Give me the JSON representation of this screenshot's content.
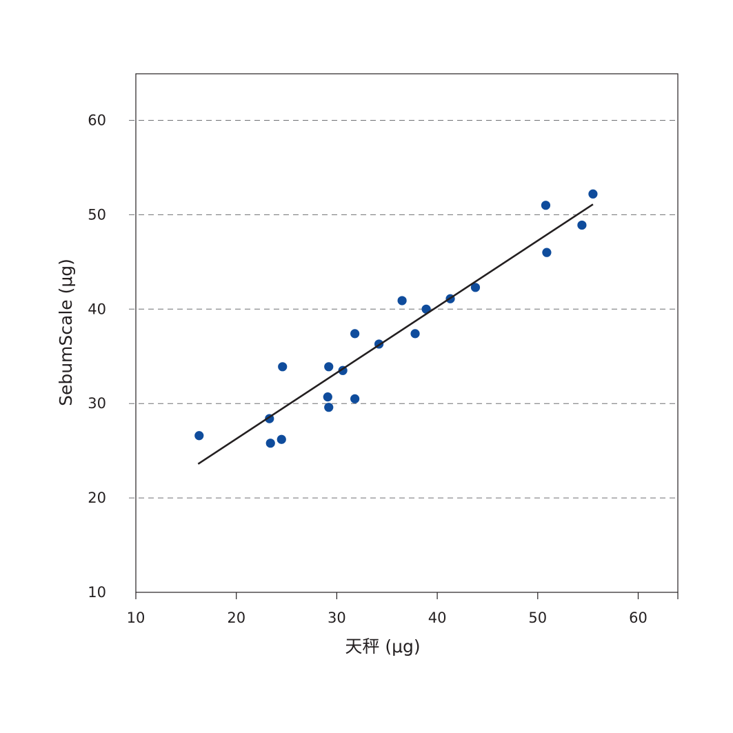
{
  "chart_data": {
    "type": "scatter",
    "title": "",
    "xlabel": "天秤 (μg)",
    "ylabel": "SebumScale (μg)",
    "xlim": [
      10,
      64
    ],
    "ylim": [
      10,
      65
    ],
    "xticks": [
      10,
      20,
      30,
      40,
      50,
      60
    ],
    "yticks": [
      10,
      20,
      30,
      40,
      50,
      60
    ],
    "grid": "horizontal dashed",
    "legend": "none",
    "point_color": "#0f4c9c",
    "line_color": "#231f20",
    "series": [
      {
        "points": [
          {
            "x": 16.3,
            "y": 26.6
          },
          {
            "x": 23.3,
            "y": 28.4
          },
          {
            "x": 23.4,
            "y": 25.8
          },
          {
            "x": 24.5,
            "y": 26.2
          },
          {
            "x": 24.6,
            "y": 33.9
          },
          {
            "x": 29.1,
            "y": 30.7
          },
          {
            "x": 29.2,
            "y": 29.6
          },
          {
            "x": 29.2,
            "y": 33.9
          },
          {
            "x": 30.6,
            "y": 33.5
          },
          {
            "x": 31.8,
            "y": 30.5
          },
          {
            "x": 31.8,
            "y": 37.4
          },
          {
            "x": 34.2,
            "y": 36.3
          },
          {
            "x": 36.5,
            "y": 40.9
          },
          {
            "x": 37.8,
            "y": 37.4
          },
          {
            "x": 38.9,
            "y": 40.0
          },
          {
            "x": 41.3,
            "y": 41.1
          },
          {
            "x": 43.8,
            "y": 42.3
          },
          {
            "x": 50.8,
            "y": 51.0
          },
          {
            "x": 50.9,
            "y": 46.0
          },
          {
            "x": 54.4,
            "y": 48.9
          },
          {
            "x": 55.5,
            "y": 52.2
          }
        ]
      }
    ],
    "trendline": {
      "x1": 16.2,
      "y1": 23.6,
      "x2": 55.5,
      "y2": 51.1
    }
  }
}
